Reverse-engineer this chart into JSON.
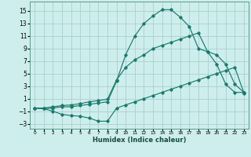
{
  "xlabel": "Humidex (Indice chaleur)",
  "background_color": "#ceeeed",
  "grid_color": "#aacfcd",
  "line_color": "#1a7a6e",
  "xlim": [
    -0.5,
    23.5
  ],
  "ylim": [
    -3.8,
    16.5
  ],
  "xticks": [
    0,
    1,
    2,
    3,
    4,
    5,
    6,
    7,
    8,
    9,
    10,
    11,
    12,
    13,
    14,
    15,
    16,
    17,
    18,
    19,
    20,
    21,
    22,
    23
  ],
  "yticks": [
    -3,
    -1,
    1,
    3,
    5,
    7,
    9,
    11,
    13,
    15
  ],
  "line1_x": [
    0,
    1,
    2,
    3,
    4,
    5,
    6,
    7,
    8,
    9,
    10,
    11,
    12,
    13,
    14,
    15,
    16,
    17,
    18,
    19,
    20,
    21,
    22,
    23
  ],
  "line1_y": [
    -0.5,
    -0.6,
    -1.0,
    -1.5,
    -1.7,
    -1.8,
    -2.1,
    -2.6,
    -2.6,
    -0.5,
    0.0,
    0.5,
    1.0,
    1.5,
    2.0,
    2.5,
    3.0,
    3.5,
    4.0,
    4.5,
    5.0,
    5.5,
    6.0,
    1.9
  ],
  "line2_x": [
    0,
    1,
    2,
    3,
    4,
    5,
    6,
    7,
    8,
    9,
    10,
    11,
    12,
    13,
    14,
    15,
    16,
    17,
    18,
    19,
    20,
    21,
    22,
    23
  ],
  "line2_y": [
    -0.5,
    -0.6,
    -0.5,
    -0.3,
    -0.3,
    -0.1,
    0.1,
    0.3,
    0.5,
    3.8,
    8.0,
    11.0,
    13.0,
    14.2,
    15.2,
    15.2,
    14.0,
    12.5,
    9.0,
    8.5,
    6.5,
    3.3,
    2.0,
    2.0
  ],
  "line3_x": [
    0,
    1,
    2,
    3,
    4,
    5,
    6,
    7,
    8,
    9,
    10,
    11,
    12,
    13,
    14,
    15,
    16,
    17,
    18,
    19,
    20,
    21,
    22,
    23
  ],
  "line3_y": [
    -0.5,
    -0.5,
    -0.3,
    -0.1,
    0.0,
    0.2,
    0.5,
    0.7,
    0.9,
    4.0,
    6.0,
    7.2,
    8.0,
    9.0,
    9.5,
    10.0,
    10.5,
    11.0,
    11.5,
    8.5,
    8.0,
    6.5,
    3.3,
    2.0
  ]
}
